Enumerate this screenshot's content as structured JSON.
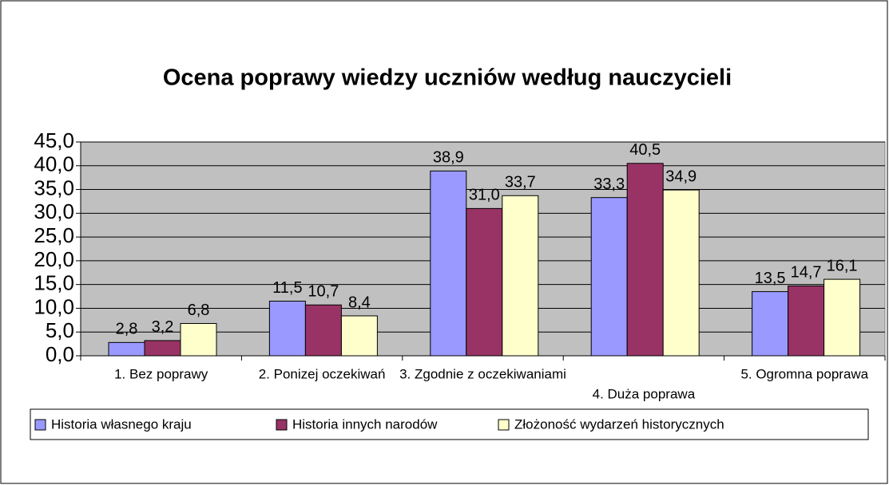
{
  "chart_data": {
    "type": "bar",
    "title": "Ocena poprawy wiedzy uczniów według nauczycieli",
    "categories": [
      "1. Bez poprawy",
      "2. Ponizej oczekiwań",
      "3. Zgodnie z oczekiwaniami",
      "4. Duża poprawa",
      "5. Ogromna poprawa"
    ],
    "series": [
      {
        "name": "Historia własnego kraju",
        "color": "#9999ff",
        "values": [
          2.8,
          11.5,
          38.9,
          33.3,
          13.5
        ],
        "value_labels": [
          "2,8",
          "11,5",
          "38,9",
          "33,3",
          "13,5"
        ]
      },
      {
        "name": "Historia innych narodów",
        "color": "#993366",
        "values": [
          3.2,
          10.7,
          31.0,
          40.5,
          14.7
        ],
        "value_labels": [
          "3,2",
          "10,7",
          "31,0",
          "40,5",
          "14,7"
        ]
      },
      {
        "name": "Złożoność wydarzeń historycznych",
        "color": "#ffffcc",
        "values": [
          6.8,
          8.4,
          33.7,
          34.9,
          16.1
        ],
        "value_labels": [
          "6,8",
          "8,4",
          "33,7",
          "34,9",
          "16,1"
        ]
      }
    ],
    "ylim": [
      0,
      45
    ],
    "yticks": [
      {
        "value": 0,
        "label": "0,0"
      },
      {
        "value": 5,
        "label": "5,0"
      },
      {
        "value": 10,
        "label": "10,0"
      },
      {
        "value": 15,
        "label": "15,0"
      },
      {
        "value": 20,
        "label": "20,0"
      },
      {
        "value": 25,
        "label": "25,0"
      },
      {
        "value": 30,
        "label": "30,0"
      },
      {
        "value": 35,
        "label": "35,0"
      },
      {
        "value": 40,
        "label": "40,0"
      },
      {
        "value": 45,
        "label": "45,0"
      }
    ],
    "grid": true,
    "legend": "bottom"
  }
}
